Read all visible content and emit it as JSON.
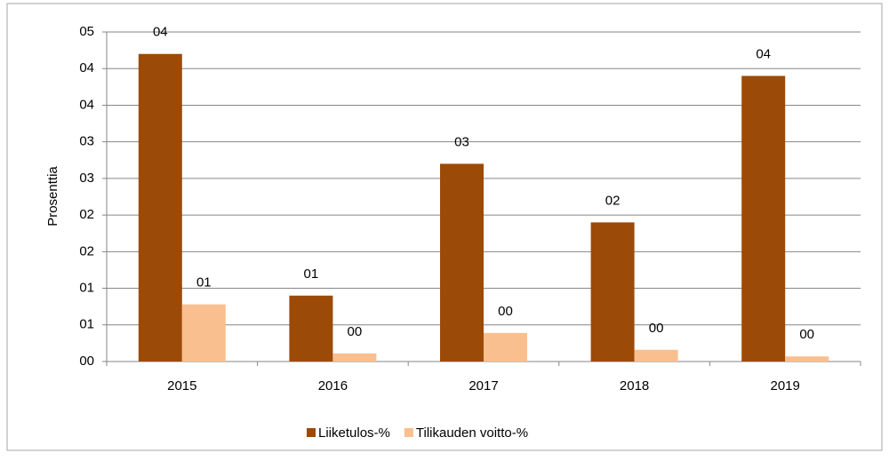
{
  "chart_data": {
    "type": "bar",
    "y_label": "Prosenttia",
    "categories": [
      "2015",
      "2016",
      "2017",
      "2018",
      "2019"
    ],
    "series": [
      {
        "name": "Liiketulos-%",
        "color": "#9c4a08",
        "values": [
          4.2,
          0.9,
          2.7,
          1.9,
          3.9
        ],
        "value_labels": [
          "04",
          "01",
          "03",
          "02",
          "04"
        ]
      },
      {
        "name": "Tilikauden voitto-%",
        "color": "#f9bf8f",
        "values": [
          0.78,
          0.11,
          0.39,
          0.16,
          0.07
        ],
        "value_labels": [
          "01",
          "00",
          "00",
          "00",
          "00"
        ]
      }
    ],
    "ylim": [
      0,
      4.5
    ],
    "yticks": [
      {
        "value": 0,
        "label": "00"
      },
      {
        "value": 0.5,
        "label": "01"
      },
      {
        "value": 1,
        "label": "01"
      },
      {
        "value": 1.5,
        "label": "02"
      },
      {
        "value": 2,
        "label": "02"
      },
      {
        "value": 2.5,
        "label": "03"
      },
      {
        "value": 3,
        "label": "03"
      },
      {
        "value": 3.5,
        "label": "04"
      },
      {
        "value": 4,
        "label": "04"
      },
      {
        "value": 4.5,
        "label": "05"
      }
    ],
    "grid": true,
    "legend": "bottom"
  }
}
